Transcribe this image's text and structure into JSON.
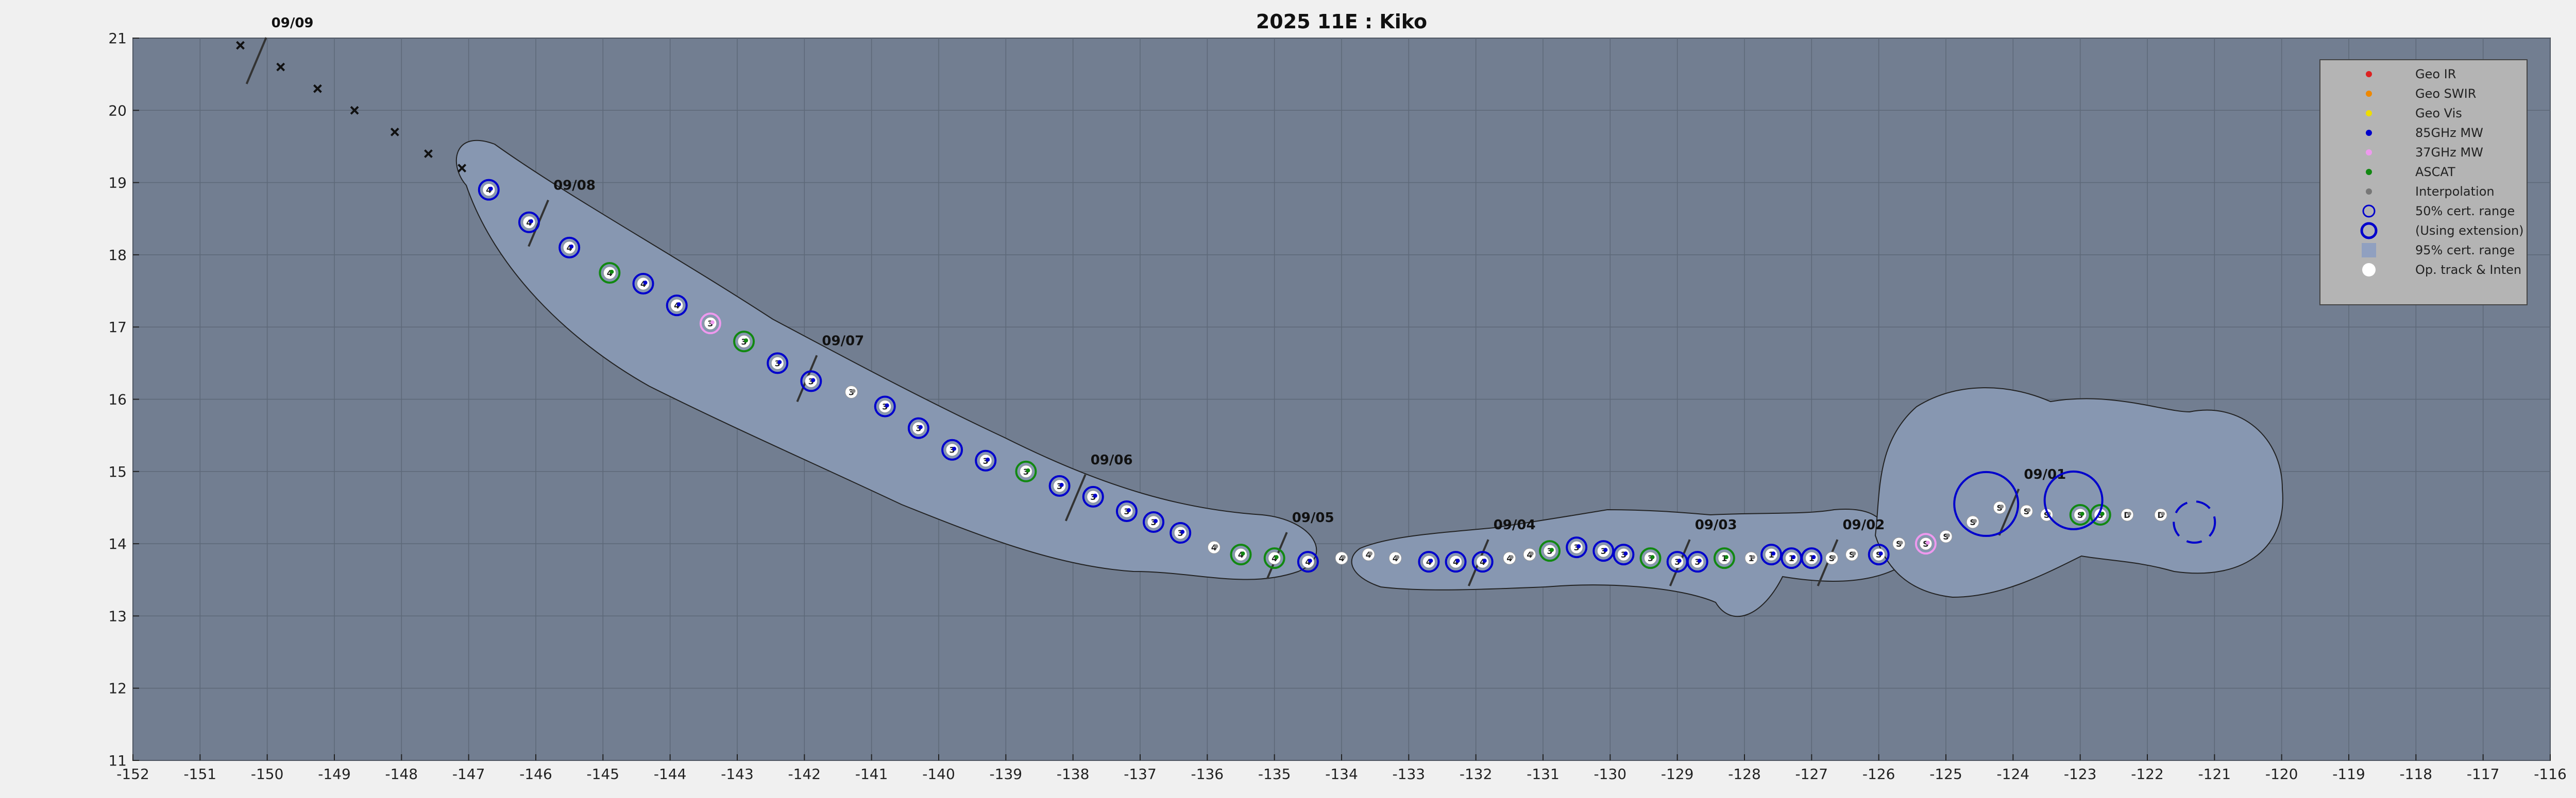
{
  "chart_data": {
    "type": "scatter",
    "title": "2025  11E :  Kiko",
    "xlim": [
      -152,
      -116
    ],
    "ylim": [
      11,
      21
    ],
    "xticks": [
      -152,
      -151,
      -150,
      -149,
      -148,
      -147,
      -146,
      -145,
      -144,
      -143,
      -142,
      -141,
      -140,
      -139,
      -138,
      -137,
      -136,
      -135,
      -134,
      -133,
      -132,
      -131,
      -130,
      -129,
      -128,
      -127,
      -126,
      -125,
      -124,
      -123,
      -122,
      -121,
      -120,
      -119,
      -118,
      -117,
      -116
    ],
    "yticks": [
      11,
      12,
      13,
      14,
      15,
      16,
      17,
      18,
      19,
      20,
      21
    ],
    "grid": true,
    "legend_position": "top-right",
    "legend": [
      {
        "label": "Geo IR",
        "color": "#dd2222",
        "kind": "dot"
      },
      {
        "label": "Geo SWIR",
        "color": "#ee8800",
        "kind": "dot"
      },
      {
        "label": "Geo Vis",
        "color": "#eedd00",
        "kind": "dot"
      },
      {
        "label": "85GHz MW",
        "color": "#0000cc",
        "kind": "dot"
      },
      {
        "label": "37GHz MW",
        "color": "#ee99ee",
        "kind": "dot"
      },
      {
        "label": "ASCAT",
        "color": "#118811",
        "kind": "dot"
      },
      {
        "label": "Interpolation",
        "color": "#777777",
        "kind": "dot"
      },
      {
        "label": "50% cert. range",
        "color": "#0000cc",
        "kind": "ring"
      },
      {
        "label": "(Using extension)",
        "color": "#0000cc",
        "kind": "ring-thick"
      },
      {
        "label": "95% cert. range",
        "color": "#90a0c0",
        "kind": "box"
      },
      {
        "label": "Op. track & Inten",
        "color": "#ffffff",
        "kind": "dot-big"
      }
    ],
    "date_marks": [
      {
        "label": "09/09",
        "x": -150.0,
        "y": 21.15
      },
      {
        "label": "09/08",
        "x": -145.8,
        "y": 18.9
      },
      {
        "label": "09/07",
        "x": -141.8,
        "y": 16.75
      },
      {
        "label": "09/06",
        "x": -137.8,
        "y": 15.1
      },
      {
        "label": "09/05",
        "x": -134.8,
        "y": 14.3
      },
      {
        "label": "09/04",
        "x": -131.8,
        "y": 14.2
      },
      {
        "label": "09/03",
        "x": -128.8,
        "y": 14.2
      },
      {
        "label": "09/02",
        "x": -126.6,
        "y": 14.2
      },
      {
        "label": "09/01",
        "x": -123.9,
        "y": 14.9
      }
    ],
    "forecast_track": [
      {
        "x": -150.4,
        "y": 20.9
      },
      {
        "x": -149.8,
        "y": 20.6
      },
      {
        "x": -149.25,
        "y": 20.3
      },
      {
        "x": -148.7,
        "y": 20.0
      },
      {
        "x": -148.1,
        "y": 19.7
      },
      {
        "x": -147.6,
        "y": 19.4
      },
      {
        "x": -147.1,
        "y": 19.2
      }
    ],
    "fixes": [
      {
        "x": -146.7,
        "y": 18.9,
        "src": "85",
        "lbl": "4"
      },
      {
        "x": -146.1,
        "y": 18.45,
        "src": "85",
        "lbl": "4"
      },
      {
        "x": -145.5,
        "y": 18.1,
        "src": "85",
        "lbl": "4"
      },
      {
        "x": -144.9,
        "y": 17.75,
        "src": "ascat",
        "lbl": "4"
      },
      {
        "x": -144.4,
        "y": 17.6,
        "src": "85",
        "lbl": "4"
      },
      {
        "x": -143.9,
        "y": 17.3,
        "src": "85",
        "lbl": "4"
      },
      {
        "x": -143.4,
        "y": 17.05,
        "src": "37",
        "lbl": "3"
      },
      {
        "x": -142.9,
        "y": 16.8,
        "src": "ascat",
        "lbl": "3"
      },
      {
        "x": -142.4,
        "y": 16.5,
        "src": "85",
        "lbl": "3"
      },
      {
        "x": -141.9,
        "y": 16.25,
        "src": "85",
        "lbl": "3"
      },
      {
        "x": -141.3,
        "y": 16.1,
        "src": "op",
        "lbl": "3"
      },
      {
        "x": -140.8,
        "y": 15.9,
        "src": "85",
        "lbl": "3"
      },
      {
        "x": -140.3,
        "y": 15.6,
        "src": "85",
        "lbl": "3"
      },
      {
        "x": -139.8,
        "y": 15.3,
        "src": "85",
        "lbl": "3"
      },
      {
        "x": -139.3,
        "y": 15.15,
        "src": "85",
        "lbl": "3"
      },
      {
        "x": -138.7,
        "y": 15.0,
        "src": "ascat",
        "lbl": "3"
      },
      {
        "x": -138.2,
        "y": 14.8,
        "src": "85",
        "lbl": "3"
      },
      {
        "x": -137.7,
        "y": 14.65,
        "src": "85",
        "lbl": "3"
      },
      {
        "x": -137.2,
        "y": 14.45,
        "src": "85",
        "lbl": "3"
      },
      {
        "x": -136.8,
        "y": 14.3,
        "src": "85",
        "lbl": "3"
      },
      {
        "x": -136.4,
        "y": 14.15,
        "src": "85",
        "lbl": "3"
      },
      {
        "x": -135.9,
        "y": 13.95,
        "src": "op",
        "lbl": "4"
      },
      {
        "x": -135.5,
        "y": 13.85,
        "src": "ascat",
        "lbl": "4"
      },
      {
        "x": -135.0,
        "y": 13.8,
        "src": "ascat",
        "lbl": "4"
      },
      {
        "x": -134.5,
        "y": 13.75,
        "src": "85",
        "lbl": "4"
      },
      {
        "x": -134.0,
        "y": 13.8,
        "src": "op",
        "lbl": "4"
      },
      {
        "x": -133.6,
        "y": 13.85,
        "src": "op",
        "lbl": "4"
      },
      {
        "x": -133.2,
        "y": 13.8,
        "src": "op",
        "lbl": "4"
      },
      {
        "x": -132.7,
        "y": 13.75,
        "src": "85",
        "lbl": "4"
      },
      {
        "x": -132.3,
        "y": 13.75,
        "src": "85",
        "lbl": "4"
      },
      {
        "x": -131.9,
        "y": 13.75,
        "src": "85",
        "lbl": "4"
      },
      {
        "x": -131.5,
        "y": 13.8,
        "src": "op",
        "lbl": "4"
      },
      {
        "x": -131.2,
        "y": 13.85,
        "src": "op",
        "lbl": "4"
      },
      {
        "x": -130.9,
        "y": 13.9,
        "src": "ascat",
        "lbl": "3"
      },
      {
        "x": -130.5,
        "y": 13.95,
        "src": "85",
        "lbl": "3"
      },
      {
        "x": -130.1,
        "y": 13.9,
        "src": "85",
        "lbl": "3"
      },
      {
        "x": -129.8,
        "y": 13.85,
        "src": "85",
        "lbl": "3"
      },
      {
        "x": -129.4,
        "y": 13.8,
        "src": "ascat",
        "lbl": "3"
      },
      {
        "x": -129.0,
        "y": 13.75,
        "src": "85",
        "lbl": "3"
      },
      {
        "x": -128.7,
        "y": 13.75,
        "src": "85",
        "lbl": "3"
      },
      {
        "x": -128.3,
        "y": 13.8,
        "src": "ascat",
        "lbl": "1"
      },
      {
        "x": -127.9,
        "y": 13.8,
        "src": "op",
        "lbl": "1"
      },
      {
        "x": -127.6,
        "y": 13.85,
        "src": "85",
        "lbl": "1"
      },
      {
        "x": -127.3,
        "y": 13.8,
        "src": "85",
        "lbl": "1"
      },
      {
        "x": -127.0,
        "y": 13.8,
        "src": "85",
        "lbl": "1"
      },
      {
        "x": -126.7,
        "y": 13.8,
        "src": "op",
        "lbl": "S"
      },
      {
        "x": -126.4,
        "y": 13.85,
        "src": "op",
        "lbl": "S"
      },
      {
        "x": -126.0,
        "y": 13.85,
        "src": "85",
        "lbl": "S"
      },
      {
        "x": -125.7,
        "y": 14.0,
        "src": "op",
        "lbl": "S"
      },
      {
        "x": -125.3,
        "y": 14.0,
        "src": "37",
        "lbl": "S"
      },
      {
        "x": -125.0,
        "y": 14.1,
        "src": "op",
        "lbl": "S"
      },
      {
        "x": -124.6,
        "y": 14.3,
        "src": "op",
        "lbl": "S"
      },
      {
        "x": -124.2,
        "y": 14.5,
        "src": "op",
        "lbl": "S"
      },
      {
        "x": -123.8,
        "y": 14.45,
        "src": "op",
        "lbl": "S"
      },
      {
        "x": -123.5,
        "y": 14.4,
        "src": "op",
        "lbl": "S"
      },
      {
        "x": -123.0,
        "y": 14.4,
        "src": "ascat",
        "lbl": "S"
      },
      {
        "x": -122.7,
        "y": 14.4,
        "src": "ascat",
        "lbl": "S"
      },
      {
        "x": -122.3,
        "y": 14.4,
        "src": "op",
        "lbl": "D"
      },
      {
        "x": -121.8,
        "y": 14.4,
        "src": "op",
        "lbl": "D"
      }
    ]
  }
}
